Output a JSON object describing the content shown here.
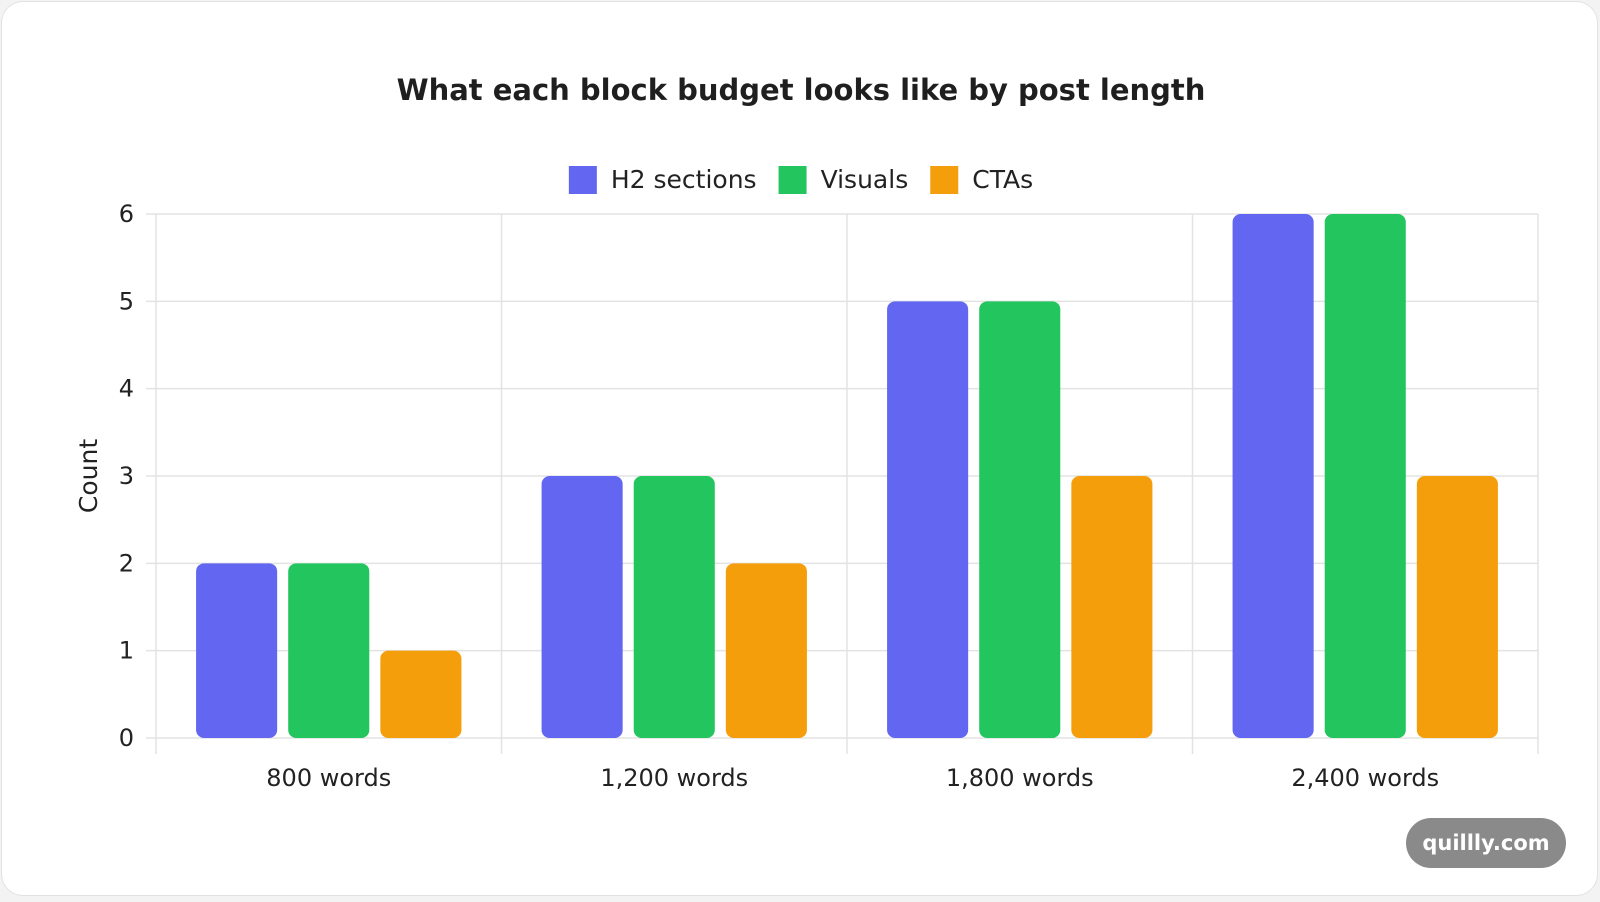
{
  "chart_data": {
    "type": "bar",
    "title": "What each block budget looks like by post length",
    "xlabel": "",
    "ylabel": "Count",
    "categories": [
      "800 words",
      "1,200 words",
      "1,800 words",
      "2,400 words"
    ],
    "series": [
      {
        "name": "H2 sections",
        "color": "#6366f1",
        "values": [
          2,
          3,
          5,
          6
        ]
      },
      {
        "name": "Visuals",
        "color": "#22c55e",
        "values": [
          2,
          3,
          5,
          6
        ]
      },
      {
        "name": "CTAs",
        "color": "#f59e0b",
        "values": [
          1,
          2,
          3,
          3
        ]
      }
    ],
    "ylim": [
      0,
      6
    ],
    "yticks": [
      "0",
      "1",
      "2",
      "3",
      "4",
      "5",
      "6"
    ],
    "grid": true,
    "legend_position": "top-center"
  },
  "watermark": "quillly.com"
}
